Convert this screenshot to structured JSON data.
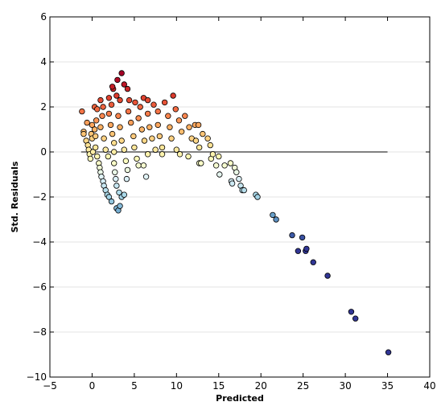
{
  "chart_data": {
    "type": "scatter",
    "title": "",
    "xlabel": "Predicted",
    "ylabel": "Std. Residuals",
    "xlim": [
      -5,
      40
    ],
    "ylim": [
      -10,
      6
    ],
    "xticks": [
      -5,
      0,
      5,
      10,
      15,
      20,
      25,
      30,
      35,
      40
    ],
    "yticks": [
      -10,
      -8,
      -6,
      -4,
      -2,
      0,
      2,
      4,
      6
    ],
    "xtick_labels": [
      "−5",
      "0",
      "5",
      "10",
      "15",
      "20",
      "25",
      "30",
      "35",
      "40"
    ],
    "ytick_labels": [
      "−10",
      "−8",
      "−6",
      "−4",
      "−2",
      "0",
      "2",
      "4",
      "6"
    ],
    "grid": "horizontal",
    "reference_line": {
      "y": 0,
      "x_start": -1.3,
      "x_end": 35,
      "color": "#808080"
    },
    "colormap": "RdYlBu_r",
    "color_by": "residual",
    "color_range": [
      -3,
      3
    ],
    "points": [
      [
        -1.2,
        1.8
      ],
      [
        -1.0,
        0.9
      ],
      [
        -1.0,
        0.8
      ],
      [
        -0.6,
        1.3
      ],
      [
        -0.7,
        0.5
      ],
      [
        -0.5,
        0.3
      ],
      [
        -0.4,
        0.1
      ],
      [
        -0.3,
        -0.1
      ],
      [
        -0.2,
        -0.3
      ],
      [
        0.0,
        1.2
      ],
      [
        -0.1,
        0.8
      ],
      [
        0.0,
        0.6
      ],
      [
        0.1,
        0.0
      ],
      [
        0.3,
        2.0
      ],
      [
        0.6,
        1.9
      ],
      [
        0.5,
        1.4
      ],
      [
        0.3,
        1.0
      ],
      [
        0.4,
        0.7
      ],
      [
        0.4,
        0.2
      ],
      [
        0.6,
        -0.2
      ],
      [
        0.8,
        -0.5
      ],
      [
        0.9,
        -0.7
      ],
      [
        1.0,
        -0.9
      ],
      [
        1.1,
        -1.1
      ],
      [
        1.3,
        -1.3
      ],
      [
        1.4,
        -1.5
      ],
      [
        1.6,
        -1.7
      ],
      [
        1.8,
        -1.9
      ],
      [
        2.0,
        -2.0
      ],
      [
        2.3,
        -2.2
      ],
      [
        2.9,
        -2.5
      ],
      [
        3.1,
        -2.6
      ],
      [
        3.3,
        -2.4
      ],
      [
        1.0,
        2.3
      ],
      [
        1.3,
        2.0
      ],
      [
        1.2,
        1.6
      ],
      [
        1.0,
        1.1
      ],
      [
        1.4,
        0.6
      ],
      [
        1.6,
        0.1
      ],
      [
        1.9,
        -0.2
      ],
      [
        2.0,
        2.4
      ],
      [
        2.3,
        2.1
      ],
      [
        2.0,
        1.7
      ],
      [
        2.2,
        1.2
      ],
      [
        2.4,
        0.8
      ],
      [
        2.6,
        0.4
      ],
      [
        2.6,
        0.0
      ],
      [
        2.6,
        -0.5
      ],
      [
        2.7,
        -0.9
      ],
      [
        2.8,
        -1.2
      ],
      [
        2.9,
        -1.5
      ],
      [
        3.2,
        -1.8
      ],
      [
        3.5,
        -2.0
      ],
      [
        3.8,
        -1.9
      ],
      [
        2.5,
        2.8
      ],
      [
        2.4,
        2.9
      ],
      [
        2.9,
        2.5
      ],
      [
        3.0,
        3.2
      ],
      [
        3.3,
        2.3
      ],
      [
        3.5,
        3.5
      ],
      [
        3.8,
        3.0
      ],
      [
        3.1,
        1.6
      ],
      [
        3.3,
        1.1
      ],
      [
        3.5,
        0.5
      ],
      [
        3.8,
        0.1
      ],
      [
        4.0,
        -0.4
      ],
      [
        4.2,
        -0.8
      ],
      [
        4.1,
        -1.2
      ],
      [
        4.2,
        2.8
      ],
      [
        4.4,
        2.3
      ],
      [
        4.3,
        1.8
      ],
      [
        4.6,
        1.3
      ],
      [
        4.9,
        0.7
      ],
      [
        5.0,
        0.2
      ],
      [
        5.3,
        -0.3
      ],
      [
        5.5,
        -0.6
      ],
      [
        6.1,
        -0.6
      ],
      [
        6.4,
        -1.1
      ],
      [
        5.1,
        2.2
      ],
      [
        5.7,
        2.0
      ],
      [
        5.5,
        1.5
      ],
      [
        5.9,
        1.0
      ],
      [
        6.2,
        0.5
      ],
      [
        6.6,
        -0.1
      ],
      [
        6.1,
        2.4
      ],
      [
        6.6,
        2.3
      ],
      [
        6.6,
        1.7
      ],
      [
        6.8,
        1.1
      ],
      [
        7.1,
        0.6
      ],
      [
        7.5,
        0.1
      ],
      [
        7.3,
        2.1
      ],
      [
        7.8,
        1.8
      ],
      [
        7.8,
        1.2
      ],
      [
        8.0,
        0.7
      ],
      [
        8.3,
        0.2
      ],
      [
        8.3,
        -0.1
      ],
      [
        8.6,
        2.2
      ],
      [
        9.0,
        1.6
      ],
      [
        9.2,
        1.1
      ],
      [
        9.4,
        0.6
      ],
      [
        9.6,
        2.5
      ],
      [
        9.9,
        1.9
      ],
      [
        10.3,
        1.4
      ],
      [
        10.6,
        0.9
      ],
      [
        10.0,
        0.1
      ],
      [
        10.4,
        -0.1
      ],
      [
        11.0,
        1.6
      ],
      [
        11.5,
        1.1
      ],
      [
        11.8,
        0.6
      ],
      [
        11.4,
        -0.2
      ],
      [
        12.2,
        1.2
      ],
      [
        12.3,
        0.5
      ],
      [
        12.7,
        0.2
      ],
      [
        12.7,
        -0.5
      ],
      [
        12.9,
        -0.5
      ],
      [
        12.6,
        1.2
      ],
      [
        13.1,
        0.8
      ],
      [
        13.7,
        0.6
      ],
      [
        14.0,
        0.3
      ],
      [
        14.1,
        -0.3
      ],
      [
        14.3,
        -0.1
      ],
      [
        14.7,
        -0.6
      ],
      [
        15.0,
        -0.2
      ],
      [
        15.1,
        -1.0
      ],
      [
        15.7,
        -0.6
      ],
      [
        16.4,
        -0.5
      ],
      [
        16.5,
        -1.3
      ],
      [
        16.6,
        -1.4
      ],
      [
        16.9,
        -0.7
      ],
      [
        17.1,
        -0.9
      ],
      [
        17.4,
        -1.2
      ],
      [
        17.6,
        -1.5
      ],
      [
        17.8,
        -1.7
      ],
      [
        18.0,
        -1.7
      ],
      [
        19.4,
        -1.9
      ],
      [
        19.6,
        -2.0
      ],
      [
        21.4,
        -2.8
      ],
      [
        21.8,
        -3.0
      ],
      [
        23.7,
        -3.7
      ],
      [
        24.4,
        -4.4
      ],
      [
        24.9,
        -3.8
      ],
      [
        25.3,
        -4.4
      ],
      [
        25.4,
        -4.3
      ],
      [
        26.2,
        -4.9
      ],
      [
        27.9,
        -5.5
      ],
      [
        30.7,
        -7.1
      ],
      [
        31.2,
        -7.4
      ],
      [
        35.1,
        -8.9
      ]
    ]
  }
}
